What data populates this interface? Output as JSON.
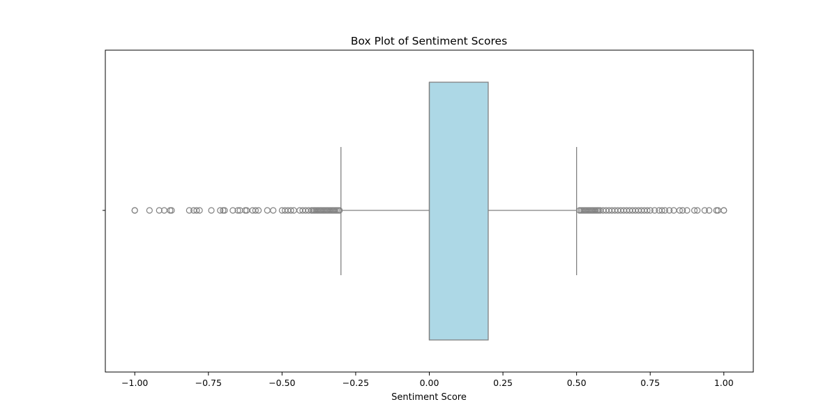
{
  "chart_data": {
    "type": "box",
    "title": "Box Plot of Sentiment Scores",
    "xlabel": "Sentiment Score",
    "ylabel": "",
    "orientation": "horizontal",
    "xlim": [
      -1.1,
      1.1
    ],
    "xticks": [
      -1.0,
      -0.75,
      -0.5,
      -0.25,
      0.0,
      0.25,
      0.5,
      0.75,
      1.0
    ],
    "xtick_labels": [
      "−1.00",
      "−0.75",
      "−0.50",
      "−0.25",
      "0.00",
      "0.25",
      "0.50",
      "0.75",
      "1.00"
    ],
    "grid": false,
    "box": {
      "q1": 0.0,
      "median": 0.0,
      "q3": 0.2,
      "whisker_low": -0.3,
      "whisker_high": 0.5,
      "fill_color": "#add8e6",
      "line_color": "#808080"
    },
    "outliers": [
      -1.0,
      -1.0,
      -0.95,
      -0.917,
      -0.9,
      -0.88,
      -0.875,
      -0.815,
      -0.8,
      -0.79,
      -0.78,
      -0.74,
      -0.71,
      -0.7,
      -0.695,
      -0.667,
      -0.65,
      -0.643,
      -0.625,
      -0.62,
      -0.6,
      -0.59,
      -0.58,
      -0.55,
      -0.53,
      -0.5,
      -0.49,
      -0.48,
      -0.47,
      -0.46,
      -0.44,
      -0.43,
      -0.42,
      -0.41,
      -0.4,
      -0.395,
      -0.39,
      -0.385,
      -0.38,
      -0.375,
      -0.37,
      -0.365,
      -0.36,
      -0.355,
      -0.35,
      -0.345,
      -0.34,
      -0.335,
      -0.33,
      -0.325,
      -0.32,
      -0.315,
      -0.31,
      -0.305,
      0.51,
      0.515,
      0.52,
      0.525,
      0.53,
      0.535,
      0.54,
      0.545,
      0.55,
      0.555,
      0.56,
      0.565,
      0.57,
      0.575,
      0.58,
      0.59,
      0.6,
      0.61,
      0.62,
      0.63,
      0.64,
      0.65,
      0.66,
      0.67,
      0.68,
      0.69,
      0.7,
      0.71,
      0.72,
      0.73,
      0.74,
      0.75,
      0.765,
      0.78,
      0.79,
      0.8,
      0.815,
      0.83,
      0.85,
      0.86,
      0.875,
      0.9,
      0.91,
      0.935,
      0.95,
      0.975,
      0.98,
      1.0,
      1.0
    ],
    "outlier_color": "#808080"
  }
}
